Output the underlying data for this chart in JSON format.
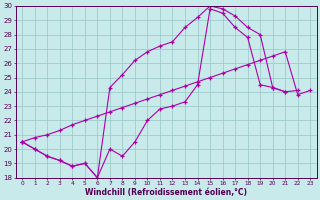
{
  "xlabel": "Windchill (Refroidissement éolien,°C)",
  "bg_color": "#c8eaea",
  "grid_color": "#a0cccc",
  "line_color": "#aa00aa",
  "hours": [
    0,
    1,
    2,
    3,
    4,
    5,
    6,
    7,
    8,
    9,
    10,
    11,
    12,
    13,
    14,
    15,
    16,
    17,
    18,
    19,
    20,
    21,
    22,
    23
  ],
  "line1_y": [
    20.5,
    20.0,
    19.5,
    19.2,
    18.8,
    19.0,
    18.0,
    20.0,
    19.5,
    20.5,
    22.0,
    22.8,
    23.0,
    23.3,
    24.5,
    29.8,
    29.5,
    28.5,
    27.8,
    24.5,
    24.3,
    24.0,
    24.1,
    null
  ],
  "line2_x": [
    0,
    1,
    2,
    3,
    4,
    5,
    6,
    7,
    8,
    9,
    10,
    11,
    12,
    13,
    14,
    15,
    16,
    17,
    18,
    19,
    20,
    21
  ],
  "line2_y": [
    20.5,
    20.0,
    19.5,
    19.2,
    18.8,
    19.0,
    18.0,
    24.3,
    25.2,
    26.2,
    26.8,
    27.2,
    27.5,
    28.5,
    29.2,
    30.0,
    29.8,
    29.3,
    28.5,
    28.0,
    24.3,
    24.0
  ],
  "line3_y": [
    20.5,
    20.8,
    21.0,
    21.3,
    21.7,
    22.0,
    22.3,
    22.6,
    22.9,
    23.2,
    23.5,
    23.8,
    24.1,
    24.4,
    24.7,
    25.0,
    25.3,
    25.6,
    25.9,
    26.2,
    26.5,
    26.8,
    23.8,
    24.1
  ],
  "ylim": [
    18,
    30
  ],
  "yticks": [
    18,
    19,
    20,
    21,
    22,
    23,
    24,
    25,
    26,
    27,
    28,
    29,
    30
  ],
  "xlim_min": -0.5,
  "xlim_max": 23.5,
  "xtick_labels": [
    "0",
    "1",
    "2",
    "3",
    "4",
    "5",
    "6",
    "7",
    "8",
    "9",
    "10",
    "11",
    "12",
    "13",
    "14",
    "15",
    "16",
    "17",
    "18",
    "19",
    "20",
    "21",
    "22",
    "23"
  ]
}
